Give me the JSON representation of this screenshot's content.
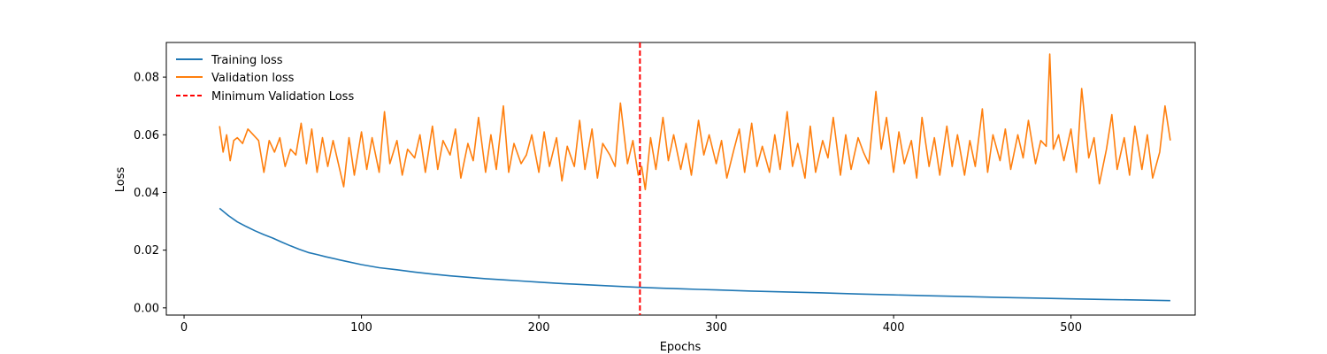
{
  "chart_data": {
    "type": "line",
    "title": "",
    "xlabel": "Epochs",
    "ylabel": "Loss",
    "xlim": [
      -10,
      570
    ],
    "ylim": [
      -0.0025,
      0.092
    ],
    "xticks": [
      0,
      100,
      200,
      300,
      400,
      500
    ],
    "xtick_labels": [
      "0",
      "100",
      "200",
      "300",
      "400",
      "500"
    ],
    "yticks": [
      0.0,
      0.02,
      0.04,
      0.06,
      0.08
    ],
    "ytick_labels": [
      "0.00",
      "0.02",
      "0.04",
      "0.06",
      "0.08"
    ],
    "grid": false,
    "legend_position": "upper-left",
    "series": [
      {
        "name": "Training loss",
        "color": "#1f77b4",
        "x": [
          20,
          25,
          30,
          35,
          40,
          45,
          50,
          55,
          60,
          65,
          70,
          75,
          80,
          90,
          100,
          110,
          120,
          130,
          140,
          150,
          160,
          170,
          180,
          190,
          200,
          210,
          220,
          230,
          240,
          250,
          257,
          270,
          280,
          290,
          300,
          320,
          340,
          360,
          380,
          400,
          420,
          440,
          460,
          480,
          500,
          520,
          540,
          556
        ],
        "y": [
          0.0345,
          0.032,
          0.0298,
          0.0282,
          0.0267,
          0.0254,
          0.0242,
          0.0228,
          0.0215,
          0.0203,
          0.0192,
          0.0185,
          0.0177,
          0.0163,
          0.015,
          0.0139,
          0.0132,
          0.0124,
          0.0117,
          0.0111,
          0.0106,
          0.0101,
          0.0097,
          0.0093,
          0.0089,
          0.0085,
          0.0082,
          0.0079,
          0.0076,
          0.0073,
          0.0071,
          0.0068,
          0.0066,
          0.0064,
          0.0062,
          0.0058,
          0.0055,
          0.0052,
          0.0048,
          0.0045,
          0.0042,
          0.0039,
          0.0036,
          0.0034,
          0.0031,
          0.0029,
          0.0027,
          0.0025
        ]
      },
      {
        "name": "Validation loss",
        "color": "#ff7f0e",
        "x": [
          20,
          22,
          24,
          26,
          28,
          30,
          33,
          36,
          39,
          42,
          45,
          48,
          51,
          54,
          57,
          60,
          63,
          66,
          69,
          72,
          75,
          78,
          81,
          84,
          87,
          90,
          93,
          96,
          100,
          103,
          106,
          110,
          113,
          116,
          120,
          123,
          126,
          130,
          133,
          136,
          140,
          143,
          146,
          150,
          153,
          156,
          160,
          163,
          166,
          170,
          173,
          176,
          180,
          183,
          186,
          190,
          193,
          196,
          200,
          203,
          206,
          210,
          213,
          216,
          220,
          223,
          226,
          230,
          233,
          236,
          240,
          243,
          246,
          250,
          253,
          256,
          258,
          260,
          263,
          266,
          270,
          273,
          276,
          280,
          283,
          286,
          290,
          293,
          296,
          300,
          303,
          306,
          310,
          313,
          316,
          320,
          323,
          326,
          330,
          333,
          336,
          340,
          343,
          346,
          350,
          353,
          356,
          360,
          363,
          366,
          370,
          373,
          376,
          380,
          383,
          386,
          390,
          393,
          396,
          400,
          403,
          406,
          410,
          413,
          416,
          420,
          423,
          426,
          430,
          433,
          436,
          440,
          443,
          446,
          450,
          453,
          456,
          460,
          463,
          466,
          470,
          473,
          476,
          480,
          483,
          486,
          488,
          490,
          493,
          496,
          500,
          503,
          506,
          510,
          513,
          516,
          520,
          523,
          526,
          530,
          533,
          536,
          540,
          543,
          546,
          550,
          553,
          556
        ],
        "y": [
          0.063,
          0.054,
          0.06,
          0.051,
          0.058,
          0.059,
          0.057,
          0.062,
          0.06,
          0.058,
          0.047,
          0.058,
          0.054,
          0.059,
          0.049,
          0.055,
          0.053,
          0.064,
          0.05,
          0.062,
          0.047,
          0.059,
          0.049,
          0.058,
          0.05,
          0.042,
          0.059,
          0.046,
          0.061,
          0.048,
          0.059,
          0.047,
          0.068,
          0.05,
          0.058,
          0.046,
          0.055,
          0.052,
          0.06,
          0.047,
          0.063,
          0.048,
          0.058,
          0.053,
          0.062,
          0.045,
          0.057,
          0.051,
          0.066,
          0.047,
          0.06,
          0.048,
          0.07,
          0.047,
          0.057,
          0.05,
          0.053,
          0.06,
          0.047,
          0.061,
          0.049,
          0.059,
          0.044,
          0.056,
          0.049,
          0.065,
          0.048,
          0.062,
          0.045,
          0.057,
          0.053,
          0.049,
          0.071,
          0.05,
          0.058,
          0.046,
          0.049,
          0.041,
          0.059,
          0.048,
          0.066,
          0.051,
          0.06,
          0.048,
          0.057,
          0.046,
          0.065,
          0.053,
          0.06,
          0.05,
          0.058,
          0.045,
          0.055,
          0.062,
          0.047,
          0.064,
          0.049,
          0.056,
          0.047,
          0.06,
          0.048,
          0.068,
          0.049,
          0.057,
          0.045,
          0.063,
          0.047,
          0.058,
          0.052,
          0.066,
          0.046,
          0.06,
          0.048,
          0.059,
          0.054,
          0.05,
          0.075,
          0.055,
          0.066,
          0.047,
          0.061,
          0.05,
          0.058,
          0.045,
          0.066,
          0.049,
          0.059,
          0.046,
          0.063,
          0.049,
          0.06,
          0.046,
          0.058,
          0.049,
          0.069,
          0.047,
          0.06,
          0.051,
          0.062,
          0.048,
          0.06,
          0.052,
          0.065,
          0.05,
          0.058,
          0.056,
          0.088,
          0.055,
          0.06,
          0.051,
          0.062,
          0.047,
          0.076,
          0.052,
          0.059,
          0.043,
          0.055,
          0.067,
          0.048,
          0.059,
          0.046,
          0.063,
          0.048,
          0.06,
          0.045,
          0.054,
          0.07,
          0.058
        ]
      }
    ],
    "reference_lines": [
      {
        "name": "Minimum Validation Loss",
        "orientation": "vertical",
        "x": 257,
        "color": "#ff0000",
        "style": "dashed"
      }
    ]
  }
}
